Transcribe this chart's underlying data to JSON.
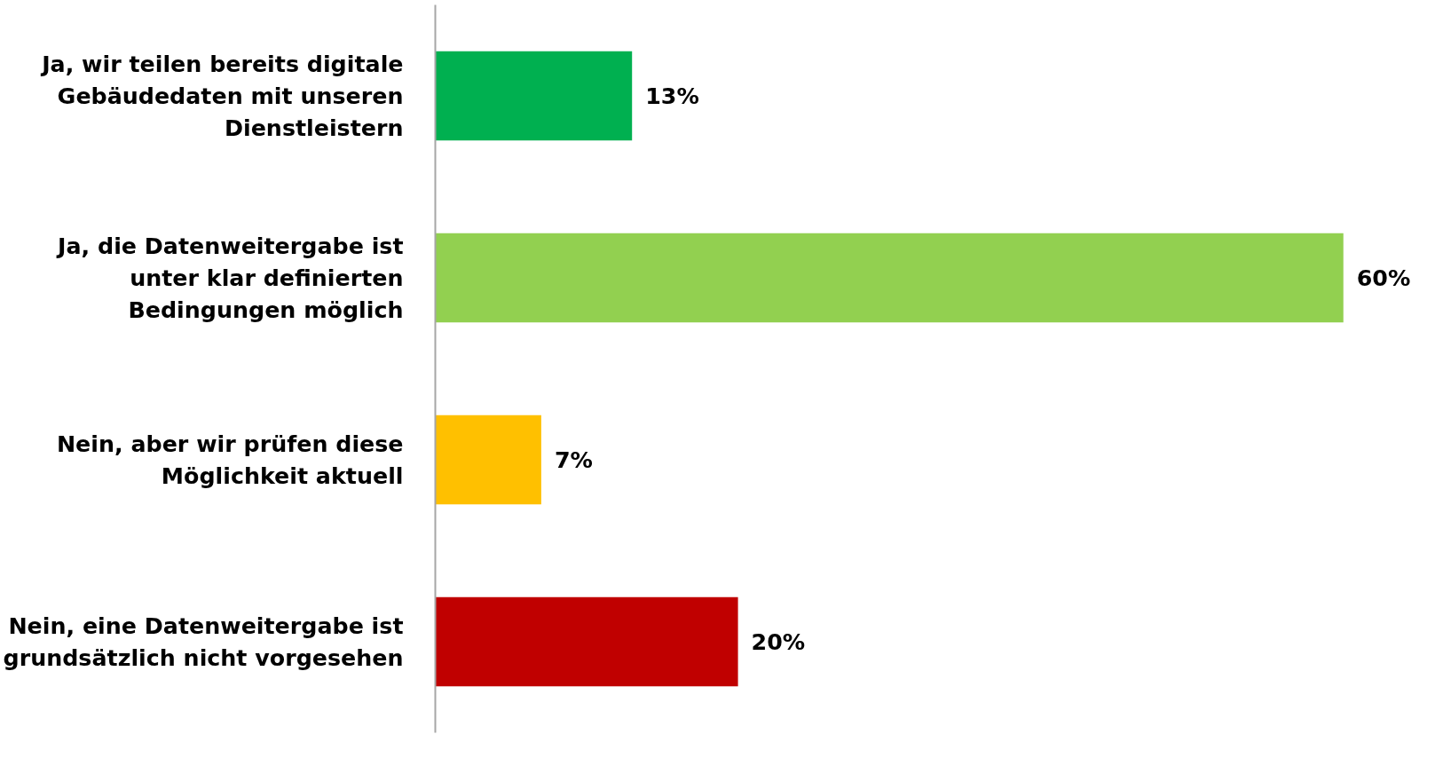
{
  "chart_data": {
    "type": "bar",
    "orientation": "horizontal",
    "categories": [
      "Ja, wir teilen bereits digitale Gebäudedaten mit unseren Dienstleistern",
      "Ja, die Datenweitergabe ist unter klar definierten Bedingungen möglich",
      "Nein, aber wir prüfen diese Möglichkeit aktuell",
      "Nein, eine Datenweitergabe ist grundsätzlich nicht vorgesehen"
    ],
    "values": [
      13,
      60,
      7,
      20
    ],
    "colors": [
      "#00b050",
      "#92d050",
      "#ffc000",
      "#c00000"
    ],
    "value_labels": [
      "13%",
      "60%",
      "7%",
      "20%"
    ],
    "grid": false
  }
}
